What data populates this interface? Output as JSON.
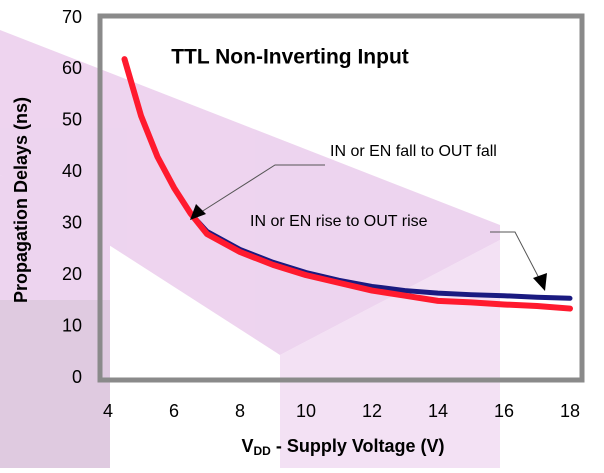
{
  "chart_data": {
    "type": "line",
    "title": "TTL Non-Inverting Input",
    "xlabel_parts": [
      "V",
      "DD",
      " - Supply Voltage (V)"
    ],
    "ylabel": "Propagation Delays (ns)",
    "x": [
      4.5,
      5,
      5.5,
      6,
      6.5,
      7,
      8,
      9,
      10,
      11,
      12,
      13,
      14,
      15,
      16,
      17,
      18
    ],
    "series": [
      {
        "name": "IN or EN rise to OUT rise",
        "color": "#1a1a80",
        "values": [
          62,
          51,
          43,
          37,
          32,
          28.5,
          25,
          22.5,
          20.5,
          19,
          17.8,
          17,
          16.5,
          16.2,
          16,
          15.7,
          15.5
        ]
      },
      {
        "name": "IN or EN fall to OUT fall",
        "color": "#ff1a2e",
        "values": [
          62,
          51,
          43,
          37,
          32,
          28,
          24.5,
          22,
          20,
          18.5,
          17,
          16,
          15,
          14.7,
          14.3,
          14,
          13.5
        ]
      }
    ],
    "xlim": [
      4,
      18
    ],
    "ylim": [
      0,
      70
    ],
    "xticks": [
      4,
      6,
      8,
      10,
      12,
      14,
      16,
      18
    ],
    "yticks": [
      0,
      10,
      20,
      30,
      40,
      50,
      60,
      70
    ],
    "grid": false
  }
}
